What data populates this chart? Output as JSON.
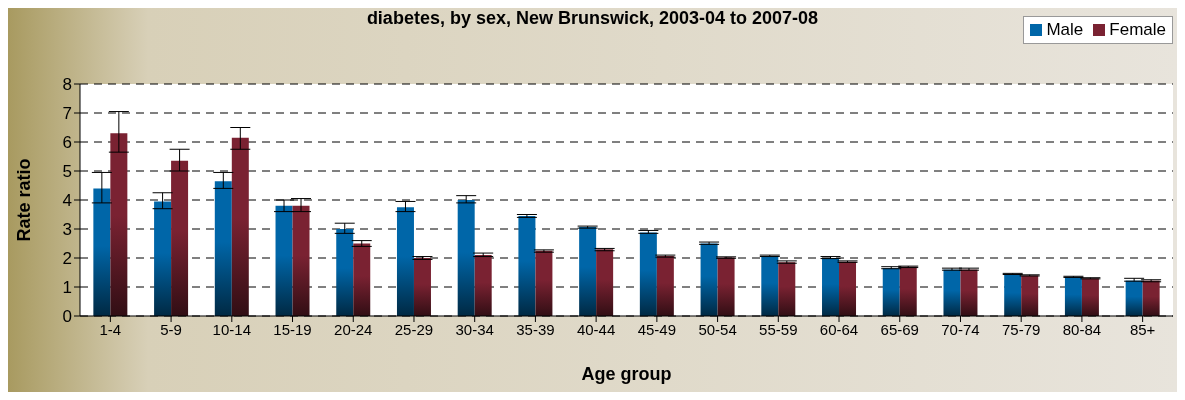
{
  "chart_data": {
    "type": "bar",
    "title": "diabetes, by sex, New Brunswick, 2003-04 to 2007-08",
    "xlabel": "Age group",
    "ylabel": "Rate ratio",
    "categories": [
      "1-4",
      "5-9",
      "10-14",
      "15-19",
      "20-24",
      "25-29",
      "30-34",
      "35-39",
      "40-44",
      "45-49",
      "50-54",
      "55-59",
      "60-64",
      "65-69",
      "70-74",
      "75-79",
      "80-84",
      "85+"
    ],
    "series": [
      {
        "name": "Male",
        "color": "#0066a8",
        "values": [
          4.4,
          3.95,
          4.65,
          3.8,
          3.0,
          3.75,
          4.0,
          3.45,
          3.07,
          2.88,
          2.5,
          2.07,
          2.0,
          1.65,
          1.6,
          1.45,
          1.35,
          1.22
        ],
        "errors": [
          [
            3.9,
            4.95
          ],
          [
            3.7,
            4.25
          ],
          [
            4.4,
            4.95
          ],
          [
            3.6,
            4.0
          ],
          [
            2.85,
            3.2
          ],
          [
            3.6,
            3.95
          ],
          [
            3.9,
            4.15
          ],
          [
            3.4,
            3.5
          ],
          [
            3.03,
            3.1
          ],
          [
            2.85,
            2.95
          ],
          [
            2.47,
            2.55
          ],
          [
            2.05,
            2.1
          ],
          [
            1.98,
            2.05
          ],
          [
            1.63,
            1.7
          ],
          [
            1.58,
            1.65
          ],
          [
            1.43,
            1.47
          ],
          [
            1.33,
            1.37
          ],
          [
            1.2,
            1.3
          ]
        ]
      },
      {
        "name": "Female",
        "color": "#7a2232",
        "values": [
          6.3,
          5.35,
          6.15,
          3.8,
          2.5,
          2.0,
          2.1,
          2.25,
          2.3,
          2.07,
          2.02,
          1.85,
          1.87,
          1.7,
          1.6,
          1.4,
          1.3,
          1.22
        ],
        "errors": [
          [
            5.65,
            7.05
          ],
          [
            5.0,
            5.75
          ],
          [
            5.75,
            6.5
          ],
          [
            3.6,
            4.05
          ],
          [
            2.4,
            2.6
          ],
          [
            1.95,
            2.05
          ],
          [
            2.05,
            2.17
          ],
          [
            2.2,
            2.28
          ],
          [
            2.25,
            2.33
          ],
          [
            2.03,
            2.1
          ],
          [
            1.99,
            2.04
          ],
          [
            1.82,
            1.9
          ],
          [
            1.85,
            1.9
          ],
          [
            1.67,
            1.72
          ],
          [
            1.58,
            1.65
          ],
          [
            1.38,
            1.42
          ],
          [
            1.28,
            1.32
          ],
          [
            1.18,
            1.25
          ]
        ]
      }
    ],
    "ylim": [
      0,
      8
    ],
    "yticks": [
      0,
      1,
      2,
      3,
      4,
      5,
      6,
      7,
      8
    ],
    "grid": "y",
    "legend": "top right"
  }
}
